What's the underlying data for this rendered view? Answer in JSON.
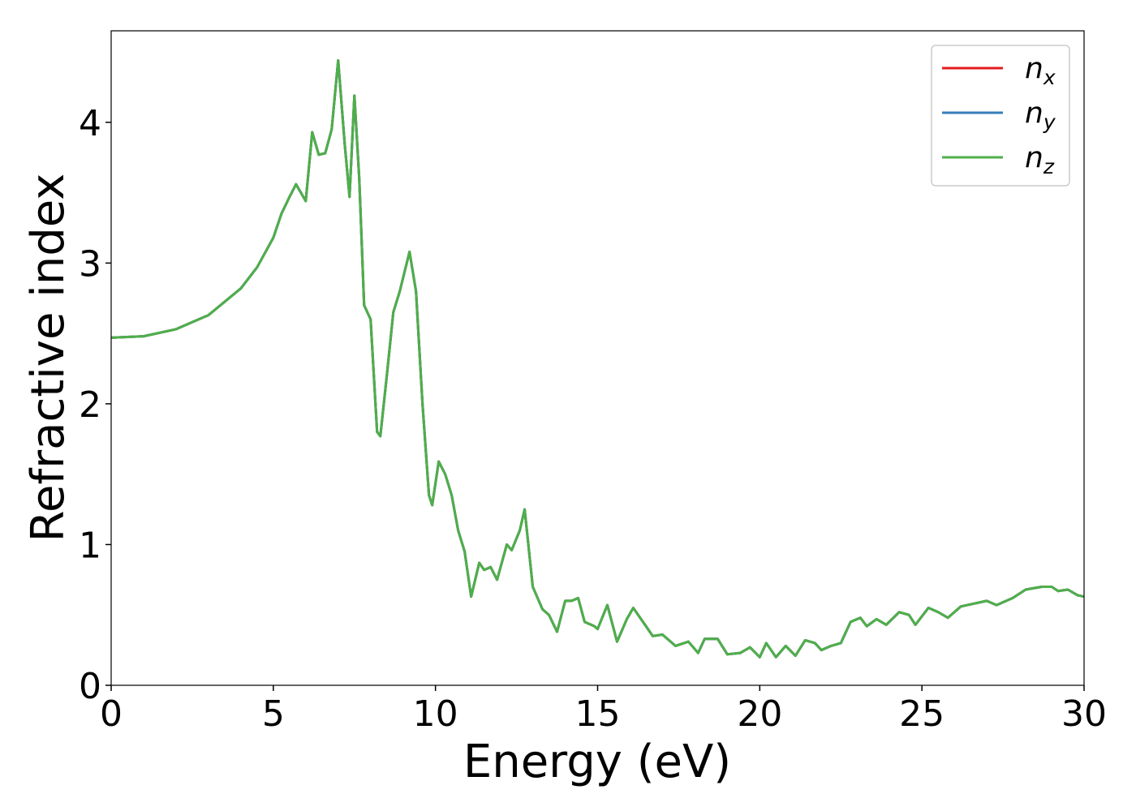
{
  "chart_data": {
    "type": "line",
    "xlabel": "Energy (eV)",
    "ylabel": "Refractive index",
    "x": [
      0,
      1,
      2,
      3,
      4,
      4.5,
      5,
      5.25,
      5.5,
      5.7,
      5.9,
      6.0,
      6.2,
      6.4,
      6.6,
      6.8,
      7.0,
      7.2,
      7.35,
      7.5,
      7.65,
      7.8,
      8.0,
      8.2,
      8.3,
      8.5,
      8.7,
      8.9,
      9.2,
      9.4,
      9.6,
      9.8,
      9.9,
      10.1,
      10.3,
      10.5,
      10.7,
      10.9,
      11.1,
      11.35,
      11.5,
      11.7,
      11.9,
      12.2,
      12.35,
      12.6,
      12.75,
      13.0,
      13.3,
      13.5,
      13.75,
      14.0,
      14.2,
      14.4,
      14.6,
      14.9,
      15.0,
      15.3,
      15.6,
      15.9,
      16.1,
      16.4,
      16.7,
      17.0,
      17.4,
      17.8,
      18.1,
      18.3,
      18.7,
      19.0,
      19.4,
      19.7,
      20.0,
      20.2,
      20.5,
      20.8,
      21.1,
      21.4,
      21.7,
      21.9,
      22.2,
      22.5,
      22.8,
      23.1,
      23.3,
      23.6,
      23.9,
      24.3,
      24.6,
      24.8,
      25.2,
      25.5,
      25.8,
      26.2,
      26.6,
      27.0,
      27.3,
      27.8,
      28.2,
      28.7,
      29.0,
      29.2,
      29.5,
      29.8,
      30.0
    ],
    "series": [
      {
        "name": "n_x",
        "color": "#e41a1c",
        "values": [
          2.47,
          2.48,
          2.53,
          2.63,
          2.82,
          2.97,
          3.18,
          3.35,
          3.47,
          3.56,
          3.48,
          3.44,
          3.93,
          3.77,
          3.78,
          3.95,
          4.44,
          3.85,
          3.47,
          4.19,
          3.6,
          2.7,
          2.6,
          1.8,
          1.77,
          2.2,
          2.65,
          2.8,
          3.08,
          2.8,
          2.0,
          1.35,
          1.28,
          1.59,
          1.5,
          1.35,
          1.1,
          0.95,
          0.63,
          0.87,
          0.82,
          0.84,
          0.75,
          1.0,
          0.96,
          1.1,
          1.25,
          0.7,
          0.54,
          0.5,
          0.38,
          0.6,
          0.6,
          0.62,
          0.45,
          0.42,
          0.4,
          0.57,
          0.31,
          0.47,
          0.55,
          0.45,
          0.35,
          0.36,
          0.28,
          0.31,
          0.23,
          0.33,
          0.33,
          0.22,
          0.23,
          0.27,
          0.2,
          0.3,
          0.2,
          0.28,
          0.21,
          0.32,
          0.3,
          0.25,
          0.28,
          0.3,
          0.45,
          0.48,
          0.42,
          0.47,
          0.43,
          0.52,
          0.5,
          0.43,
          0.55,
          0.52,
          0.48,
          0.56,
          0.58,
          0.6,
          0.57,
          0.62,
          0.68,
          0.7,
          0.7,
          0.67,
          0.68,
          0.64,
          0.63
        ]
      },
      {
        "name": "n_y",
        "color": "#377eb8",
        "values": [
          2.47,
          2.48,
          2.53,
          2.63,
          2.82,
          2.97,
          3.18,
          3.35,
          3.47,
          3.56,
          3.48,
          3.44,
          3.93,
          3.77,
          3.78,
          3.95,
          4.44,
          3.85,
          3.47,
          4.19,
          3.6,
          2.7,
          2.6,
          1.8,
          1.77,
          2.2,
          2.65,
          2.8,
          3.08,
          2.8,
          2.0,
          1.35,
          1.28,
          1.59,
          1.5,
          1.35,
          1.1,
          0.95,
          0.63,
          0.87,
          0.82,
          0.84,
          0.75,
          1.0,
          0.96,
          1.1,
          1.25,
          0.7,
          0.54,
          0.5,
          0.38,
          0.6,
          0.6,
          0.62,
          0.45,
          0.42,
          0.4,
          0.57,
          0.31,
          0.47,
          0.55,
          0.45,
          0.35,
          0.36,
          0.28,
          0.31,
          0.23,
          0.33,
          0.33,
          0.22,
          0.23,
          0.27,
          0.2,
          0.3,
          0.2,
          0.28,
          0.21,
          0.32,
          0.3,
          0.25,
          0.28,
          0.3,
          0.45,
          0.48,
          0.42,
          0.47,
          0.43,
          0.52,
          0.5,
          0.43,
          0.55,
          0.52,
          0.48,
          0.56,
          0.58,
          0.6,
          0.57,
          0.62,
          0.68,
          0.7,
          0.7,
          0.67,
          0.68,
          0.64,
          0.63
        ]
      },
      {
        "name": "n_z",
        "color": "#4daf4a",
        "values": [
          2.47,
          2.48,
          2.53,
          2.63,
          2.82,
          2.97,
          3.18,
          3.35,
          3.47,
          3.56,
          3.48,
          3.44,
          3.93,
          3.77,
          3.78,
          3.95,
          4.44,
          3.85,
          3.47,
          4.19,
          3.6,
          2.7,
          2.6,
          1.8,
          1.77,
          2.2,
          2.65,
          2.8,
          3.08,
          2.8,
          2.0,
          1.35,
          1.28,
          1.59,
          1.5,
          1.35,
          1.1,
          0.95,
          0.63,
          0.87,
          0.82,
          0.84,
          0.75,
          1.0,
          0.96,
          1.1,
          1.25,
          0.7,
          0.54,
          0.5,
          0.38,
          0.6,
          0.6,
          0.62,
          0.45,
          0.42,
          0.4,
          0.57,
          0.31,
          0.47,
          0.55,
          0.45,
          0.35,
          0.36,
          0.28,
          0.31,
          0.23,
          0.33,
          0.33,
          0.22,
          0.23,
          0.27,
          0.2,
          0.3,
          0.2,
          0.28,
          0.21,
          0.32,
          0.3,
          0.25,
          0.28,
          0.3,
          0.45,
          0.48,
          0.42,
          0.47,
          0.43,
          0.52,
          0.5,
          0.43,
          0.55,
          0.52,
          0.48,
          0.56,
          0.58,
          0.6,
          0.57,
          0.62,
          0.68,
          0.7,
          0.7,
          0.67,
          0.68,
          0.64,
          0.63
        ]
      }
    ],
    "xlim": [
      0,
      30
    ],
    "xticks": [
      0,
      5,
      10,
      15,
      20,
      25,
      30
    ],
    "ylim": [
      0,
      4.65
    ],
    "yticks": [
      0,
      1,
      2,
      3,
      4
    ],
    "grid": false,
    "legend": "upper right"
  }
}
